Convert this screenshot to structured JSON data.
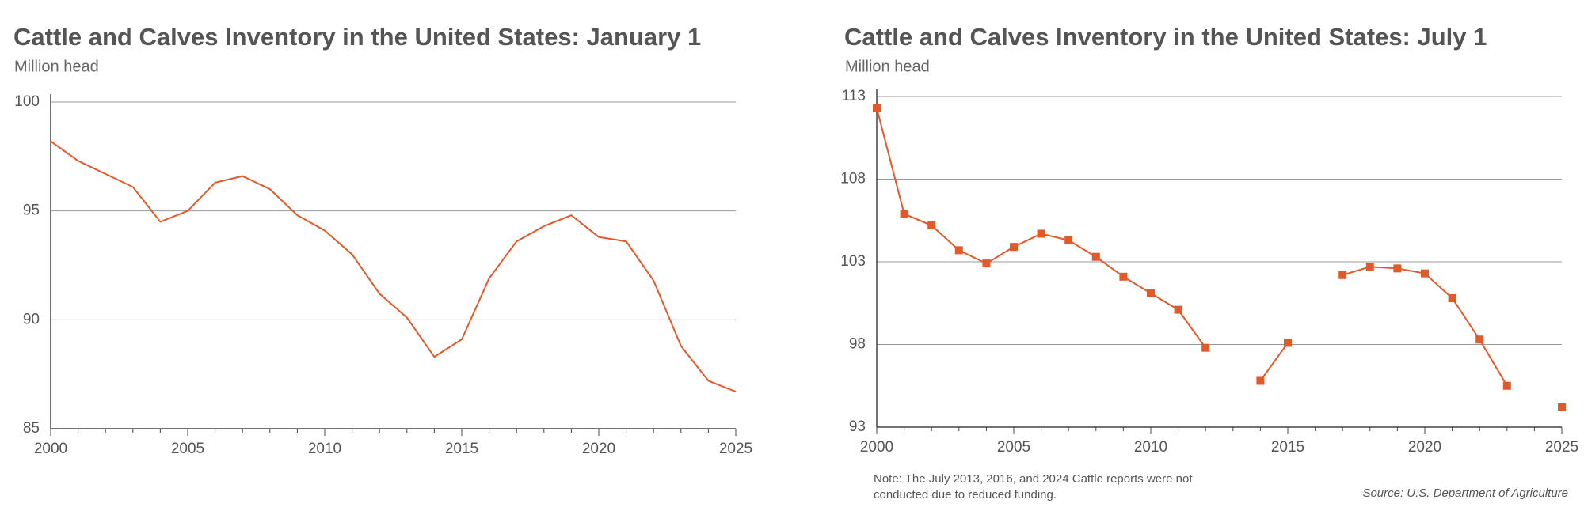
{
  "chart_data": [
    {
      "type": "line",
      "title": "Cattle and Calves Inventory in the United States: January 1",
      "subtitle": "Million head",
      "x": [
        2000,
        2001,
        2002,
        2003,
        2004,
        2005,
        2006,
        2007,
        2008,
        2009,
        2010,
        2011,
        2012,
        2013,
        2014,
        2015,
        2016,
        2017,
        2018,
        2019,
        2020,
        2021,
        2022,
        2023,
        2024,
        2025
      ],
      "values": [
        98.2,
        97.3,
        96.7,
        96.1,
        94.5,
        95.0,
        96.3,
        96.6,
        96.0,
        94.8,
        94.1,
        93.0,
        91.2,
        90.1,
        88.3,
        89.1,
        91.9,
        93.6,
        94.3,
        94.8,
        93.8,
        93.6,
        91.8,
        88.8,
        87.2,
        86.7
      ],
      "color": "#e2592a",
      "marker": "none",
      "xlim": [
        2000,
        2025
      ],
      "xticks": [
        2000,
        2005,
        2010,
        2015,
        2020,
        2025
      ],
      "ylim": [
        85,
        100
      ],
      "yticks": [
        85,
        90,
        95,
        100
      ],
      "grid": true
    },
    {
      "type": "line",
      "title": "Cattle and Calves Inventory in the United States: July 1",
      "subtitle": "Million head",
      "x": [
        2000,
        2001,
        2002,
        2003,
        2004,
        2005,
        2006,
        2007,
        2008,
        2009,
        2010,
        2011,
        2012,
        2013,
        2014,
        2015,
        2016,
        2017,
        2018,
        2019,
        2020,
        2021,
        2022,
        2023,
        2024,
        2025
      ],
      "values": [
        112.3,
        105.9,
        105.2,
        103.7,
        102.9,
        103.9,
        104.7,
        104.3,
        103.3,
        102.1,
        101.1,
        100.1,
        97.8,
        null,
        95.8,
        98.1,
        null,
        102.2,
        102.7,
        102.6,
        102.3,
        100.8,
        98.3,
        95.5,
        null,
        94.2
      ],
      "color": "#e2592a",
      "marker": "square",
      "xlim": [
        2000,
        2025
      ],
      "xticks": [
        2000,
        2005,
        2010,
        2015,
        2020,
        2025
      ],
      "ylim": [
        93,
        113
      ],
      "yticks": [
        93,
        98,
        103,
        108,
        113
      ],
      "grid": true,
      "note": "Note: The July 2013, 2016, and 2024 Cattle reports were not conducted due to reduced funding.",
      "source": "Source: U.S. Department of Agriculture"
    }
  ]
}
